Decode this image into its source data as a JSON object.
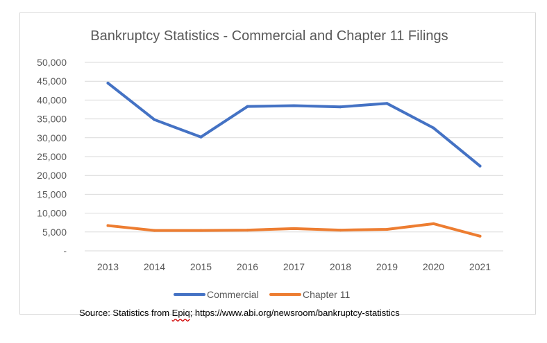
{
  "chart_data": {
    "type": "line",
    "title": "Bankruptcy Statistics - Commercial and Chapter 11 Filings",
    "xlabel": "",
    "ylabel": "",
    "categories": [
      "2013",
      "2014",
      "2015",
      "2016",
      "2017",
      "2018",
      "2019",
      "2020",
      "2021"
    ],
    "ylim": [
      0,
      50000
    ],
    "yticks": [
      0,
      5000,
      10000,
      15000,
      20000,
      25000,
      30000,
      35000,
      40000,
      45000,
      50000
    ],
    "ytick_labels": [
      "-",
      "5,000",
      "10,000",
      "15,000",
      "20,000",
      "25,000",
      "30,000",
      "35,000",
      "40,000",
      "45,000",
      "50,000"
    ],
    "grid": true,
    "legend_position": "bottom",
    "series": [
      {
        "name": "Commercial",
        "color": "#4472c4",
        "values": [
          44500,
          34800,
          30200,
          38300,
          38500,
          38200,
          39100,
          32600,
          22500
        ]
      },
      {
        "name": "Chapter 11",
        "color": "#ed7d31",
        "values": [
          6700,
          5400,
          5400,
          5500,
          5900,
          5500,
          5700,
          7200,
          3900
        ]
      }
    ]
  },
  "source": {
    "prefix": "Source:  Statistics from ",
    "epiq": "Epiq",
    "suffix": "; https://www.abi.org/newsroom/bankruptcy-statistics"
  }
}
